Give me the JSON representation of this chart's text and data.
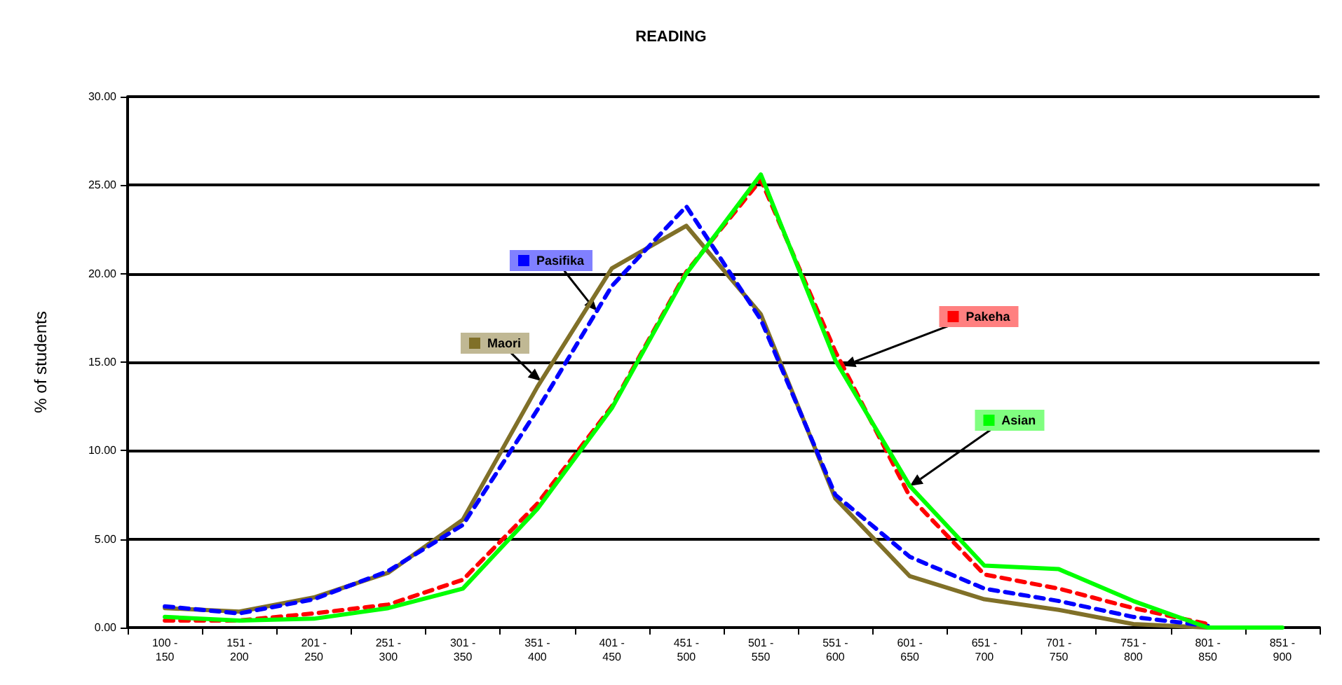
{
  "chart_data": {
    "type": "line",
    "title": "READING",
    "ylabel": "% of students",
    "categories": [
      "100 - 150",
      "151 - 200",
      "201 - 250",
      "251 - 300",
      "301 - 350",
      "351 - 400",
      "401 - 450",
      "451 - 500",
      "501 - 550",
      "551 - 600",
      "601 - 650",
      "651 - 700",
      "701 - 750",
      "751 - 800",
      "801 - 850",
      "851 - 900"
    ],
    "series": [
      {
        "name": "Maori",
        "color": "#807028",
        "line_style": "solid",
        "values": [
          1.1,
          0.9,
          1.7,
          3.1,
          6.1,
          13.6,
          20.3,
          22.7,
          17.7,
          7.3,
          2.9,
          1.6,
          1.0,
          0.2,
          0.0,
          null
        ]
      },
      {
        "name": "Pasifika",
        "color": "#0000ff",
        "line_style": "dashed",
        "values": [
          1.2,
          0.8,
          1.6,
          3.2,
          5.8,
          12.3,
          19.3,
          23.8,
          17.4,
          7.5,
          4.0,
          2.2,
          1.5,
          0.6,
          0.1,
          null
        ]
      },
      {
        "name": "Pakeha",
        "color": "#ff0000",
        "line_style": "dashed",
        "values": [
          0.4,
          0.4,
          0.8,
          1.3,
          2.7,
          7.0,
          12.5,
          20.1,
          25.3,
          15.6,
          7.4,
          3.0,
          2.2,
          1.1,
          0.2,
          null
        ]
      },
      {
        "name": "Asian",
        "color": "#00ff00",
        "line_style": "solid",
        "values": [
          0.6,
          0.4,
          0.5,
          1.1,
          2.2,
          6.7,
          12.4,
          20.0,
          25.6,
          15.1,
          8.0,
          3.5,
          3.3,
          1.5,
          0.0,
          0.0
        ]
      }
    ],
    "ylim": [
      0,
      30
    ],
    "yticks": [
      {
        "value": 0,
        "label": "0.00"
      },
      {
        "value": 5,
        "label": "5.00"
      },
      {
        "value": 10,
        "label": "10.00"
      },
      {
        "value": 15,
        "label": "15.00"
      },
      {
        "value": 20,
        "label": "20.00"
      },
      {
        "value": 25,
        "label": "25.00"
      },
      {
        "value": 30,
        "label": "30.00"
      }
    ],
    "grid": "y",
    "legend": "center",
    "marker": "none"
  }
}
